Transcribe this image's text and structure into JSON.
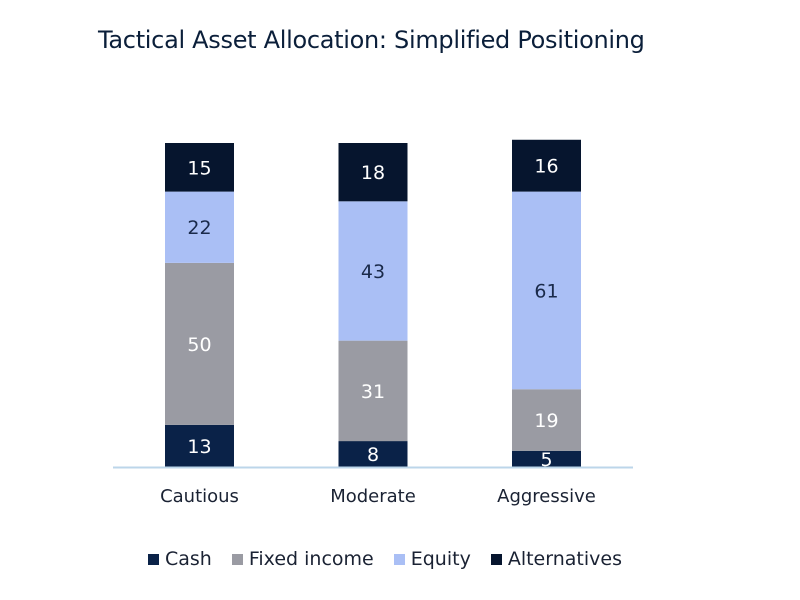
{
  "chart_data": {
    "type": "bar",
    "stacked": true,
    "title": "Tactical Asset Allocation: Simplified Positioning",
    "categories": [
      "Cautious",
      "Moderate",
      "Aggressive"
    ],
    "series": [
      {
        "name": "Cash",
        "values": [
          13,
          8,
          5
        ],
        "color": "#0a2248",
        "label_color": "#ffffff"
      },
      {
        "name": "Fixed income",
        "values": [
          50,
          31,
          19
        ],
        "color": "#9a9ba3",
        "label_color": "#ffffff"
      },
      {
        "name": "Equity",
        "values": [
          22,
          43,
          61
        ],
        "color": "#aabff5",
        "label_color": "#1a2a4a"
      },
      {
        "name": "Alternatives",
        "values": [
          15,
          18,
          16
        ],
        "color": "#06152e",
        "label_color": "#ffffff"
      }
    ],
    "ylim": [
      0,
      100
    ],
    "grid": false,
    "legend_position": "bottom"
  }
}
